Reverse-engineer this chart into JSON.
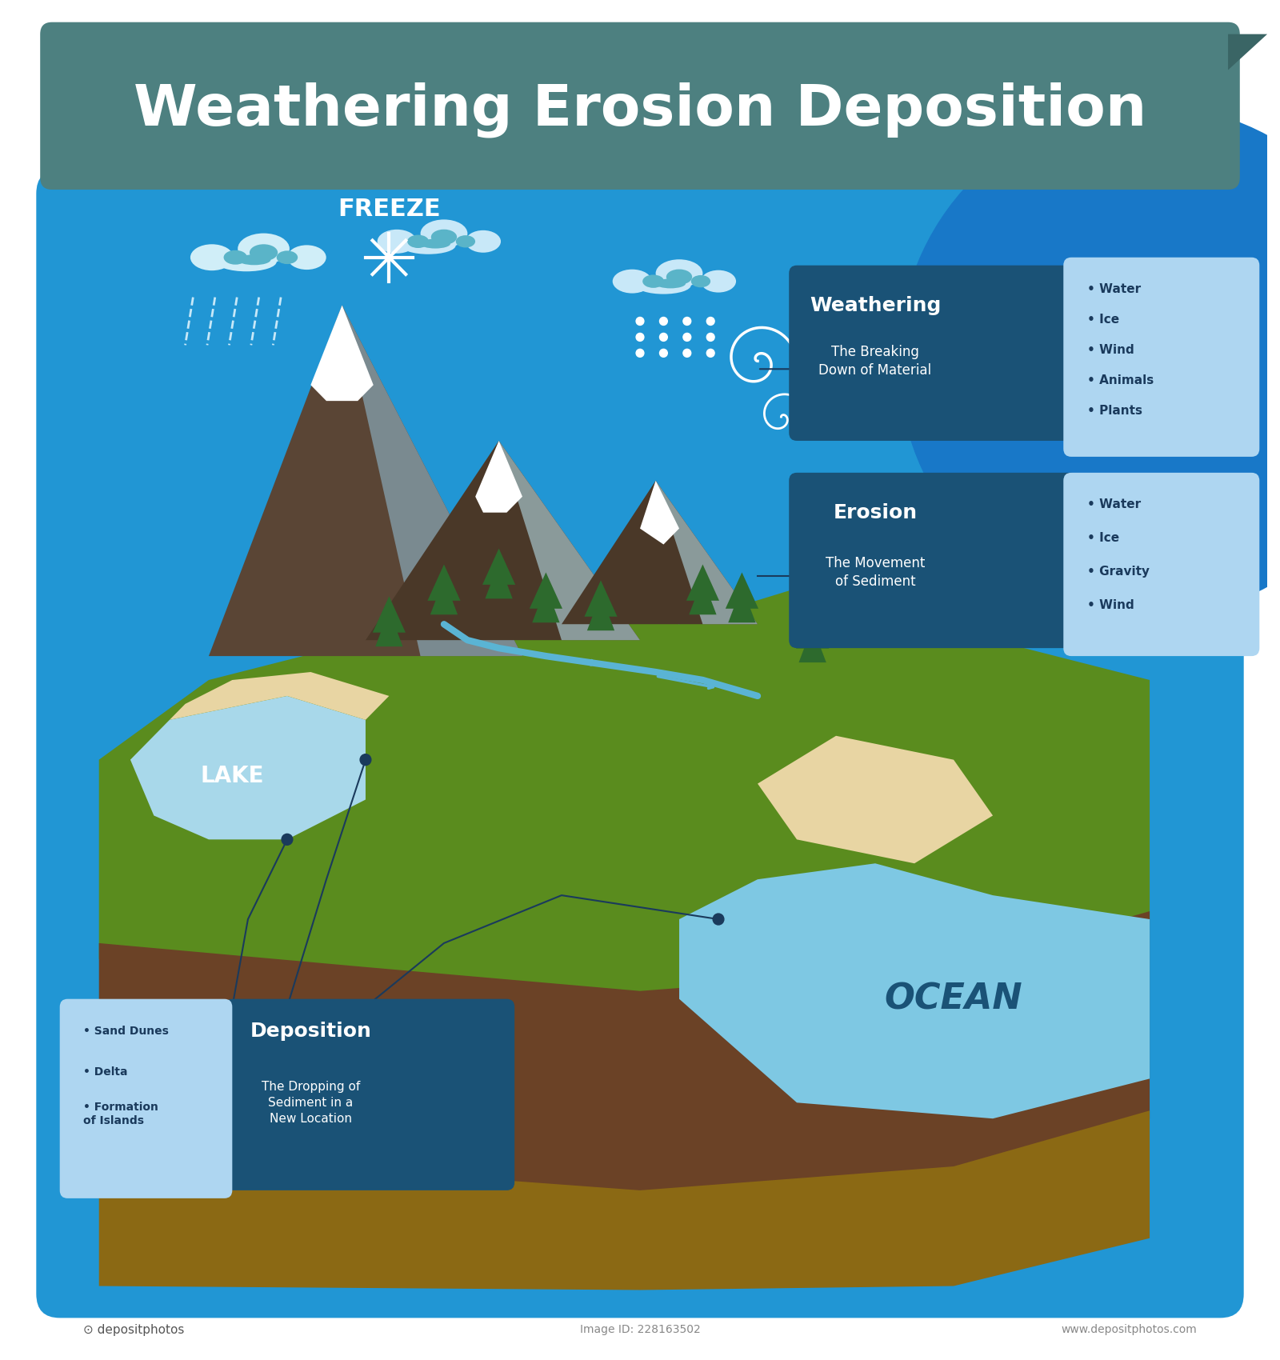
{
  "title": "Weathering Erosion Deposition",
  "title_bg_color": "#4d8080",
  "title_text_color": "#ffffff",
  "bg_color": "#ffffff",
  "diagram_bg_color": "#2196d4",
  "sky_color": "#1e90d4",
  "ground_color": "#5a8c1e",
  "soil_color": "#6b4226",
  "lake_color": "#a8d8ea",
  "ocean_color": "#7ec8e3",
  "ocean_deep_color": "#5ab4d4",
  "sand_color": "#e8d5a3",
  "mountain_dark": "#5a4535",
  "mountain_gray": "#7a8a8a",
  "snow_color": "#ffffff",
  "tree_color": "#2d6a2d",
  "river_color": "#5ab4d4",
  "weathering_box_color": "#1a5276",
  "weathering_light_color": "#aed6f1",
  "erosion_box_color": "#1a5276",
  "erosion_light_color": "#aed6f1",
  "deposition_box_color": "#1a5276",
  "deposition_light_color": "#aed6f1",
  "label_line_color": "#1a3a5c",
  "freeze_text_color": "#ffffff",
  "lake_label_color": "#ffffff",
  "ocean_label_color": "#1a5276",
  "weathering_title": "Weathering",
  "weathering_sub": "The Breaking\nDown of Material",
  "weathering_items": [
    "Water",
    "Ice",
    "Wind",
    "Animals",
    "Plants"
  ],
  "erosion_title": "Erosion",
  "erosion_sub": "The Movement\nof Sediment",
  "erosion_items": [
    "Water",
    "Ice",
    "Gravity",
    "Wind"
  ],
  "deposition_title": "Deposition",
  "deposition_sub": "The Dropping of\nSediment in a\nNew Location",
  "deposition_items": [
    "Sand Dunes",
    "Delta",
    "Formation\nof Islands"
  ],
  "freeze_label": "FREEZE",
  "lake_label": "LAKE",
  "ocean_label": "OCEAN",
  "footer_text": "depositphotos",
  "image_id": "Image ID: 228163502",
  "website": "www.depositphotos.com"
}
